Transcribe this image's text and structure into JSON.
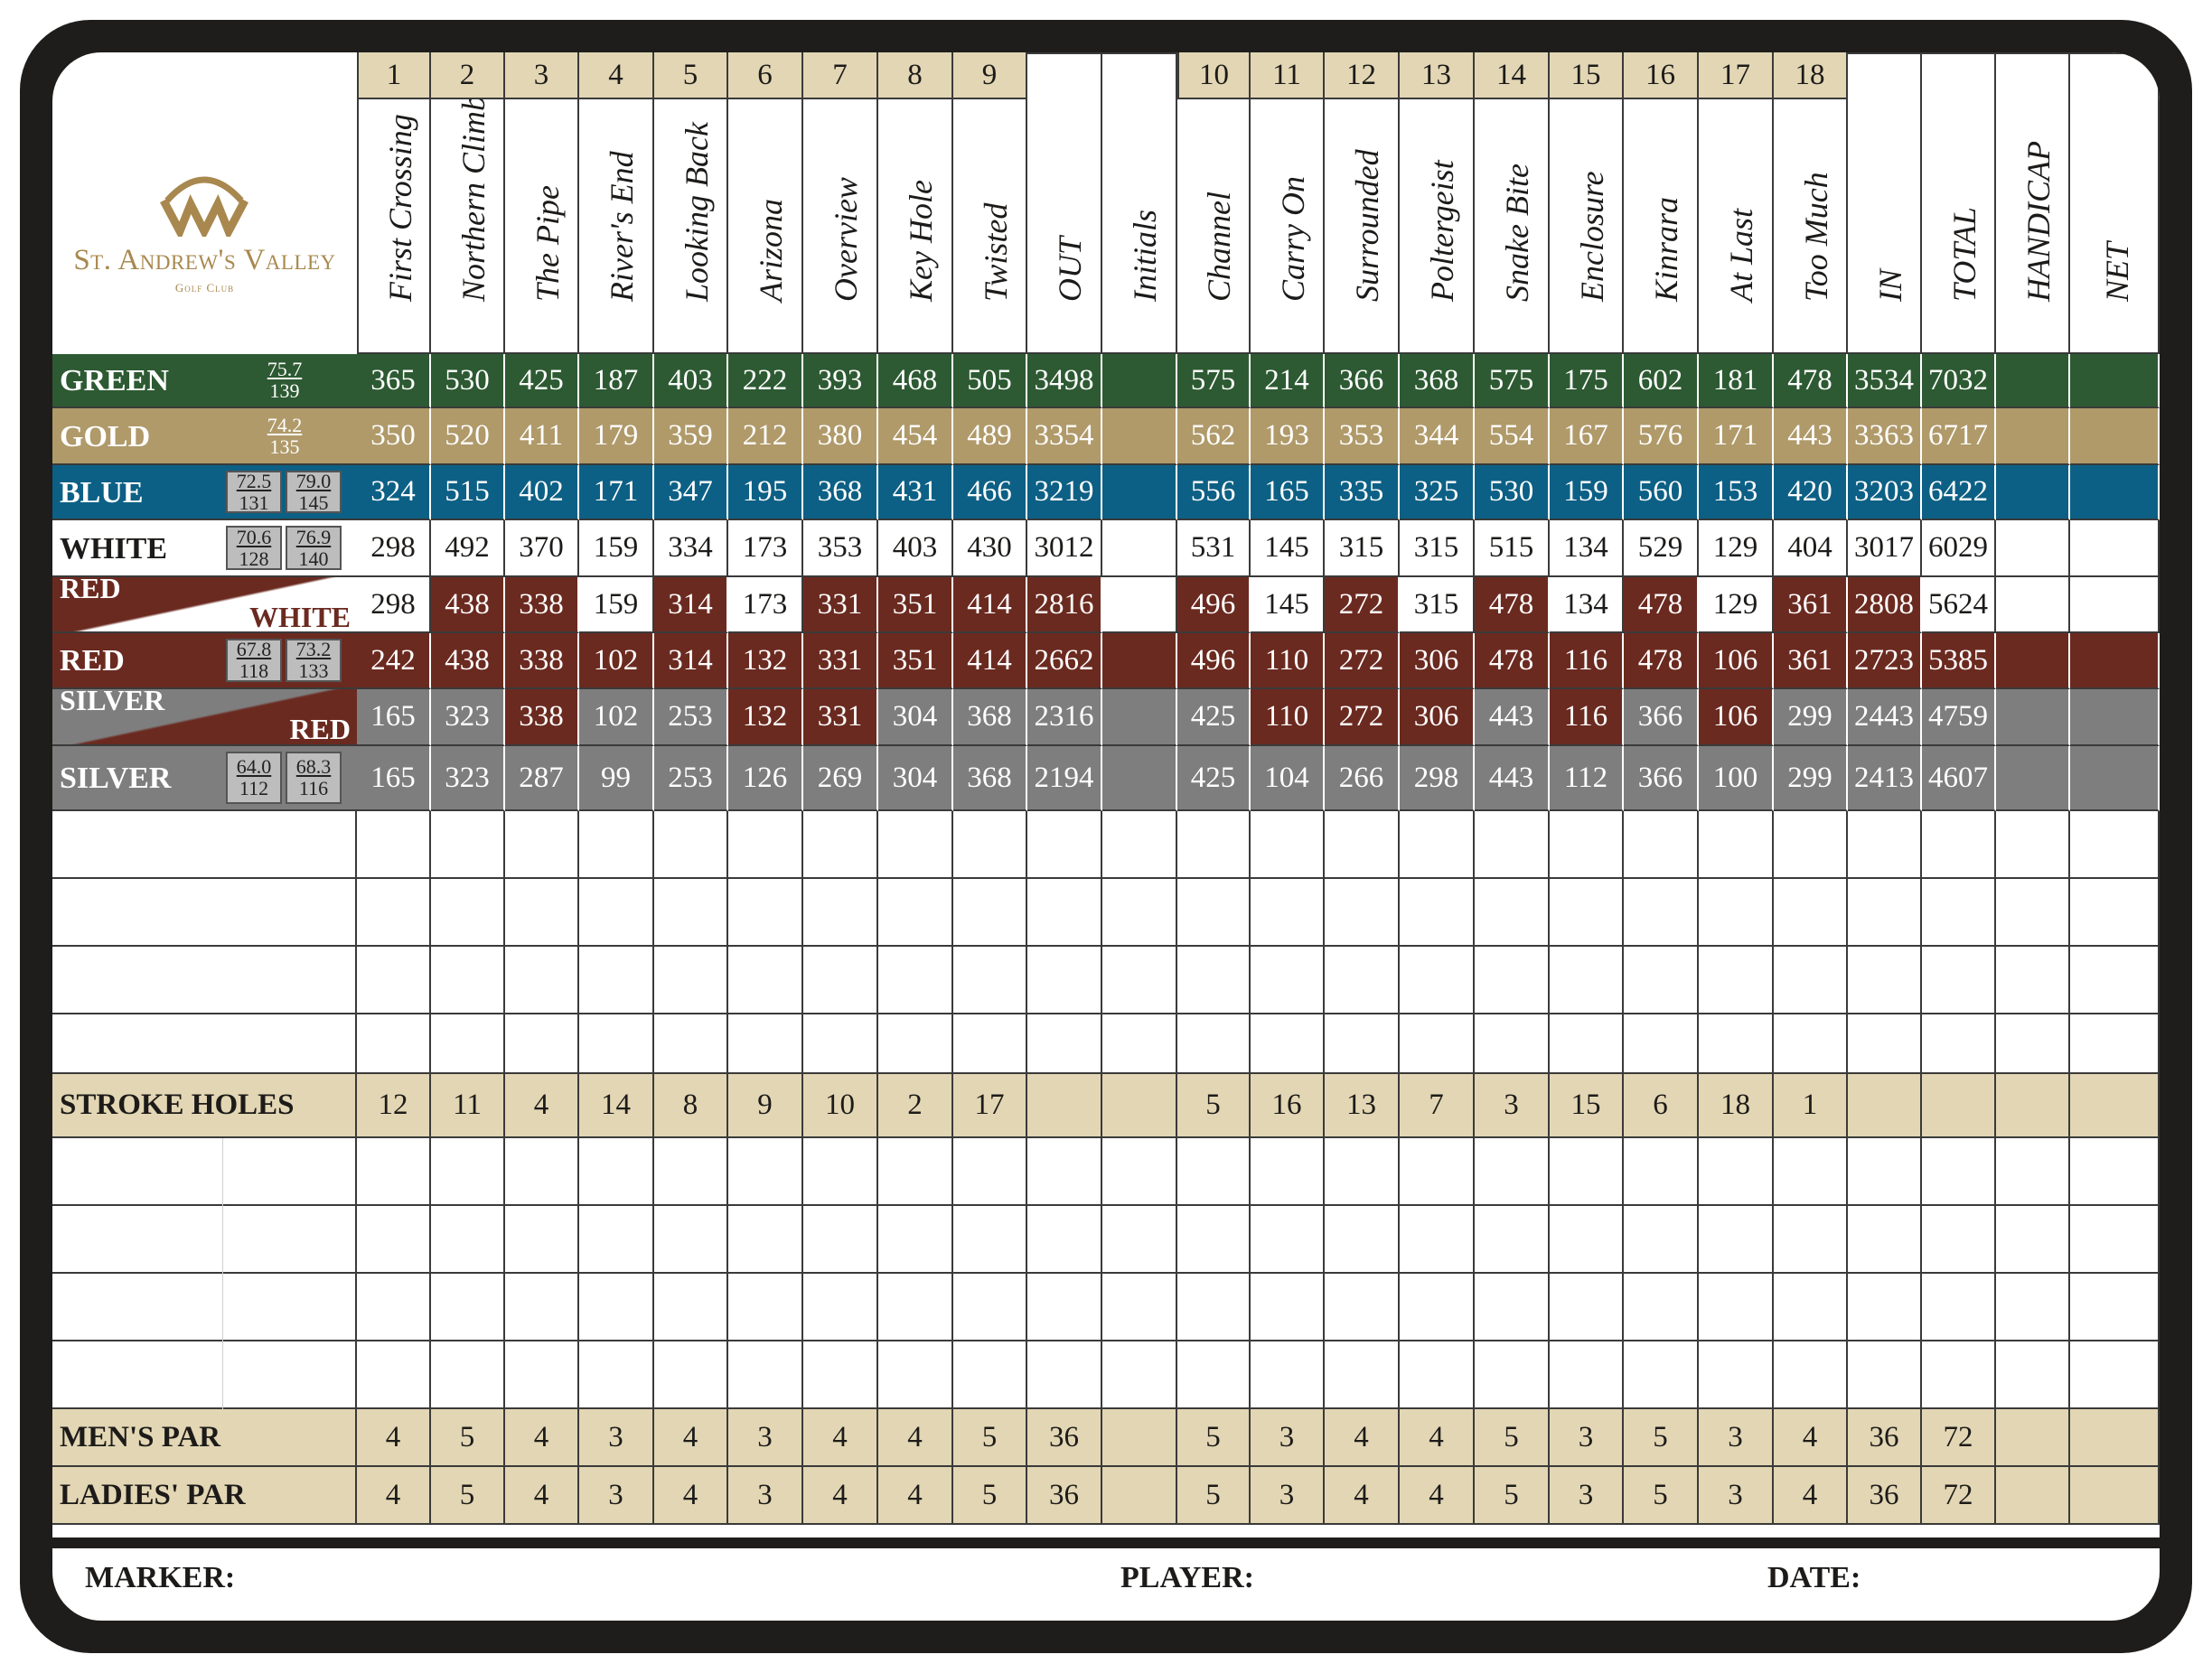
{
  "club": {
    "name": "St. Andrew's Valley",
    "subtitle": "Golf Club"
  },
  "colors": {
    "green": "#2d5a32",
    "gold": "#b09a6a",
    "blue": "#0d6085",
    "maroon": "#6b2a20",
    "silver": "#7e7e7e",
    "tan": "#e2d6b4",
    "frame": "#1e1d1b",
    "logo": "#a8884e"
  },
  "header": {
    "holes": [
      "1",
      "2",
      "3",
      "4",
      "5",
      "6",
      "7",
      "8",
      "9",
      "",
      "",
      "10",
      "11",
      "12",
      "13",
      "14",
      "15",
      "16",
      "17",
      "18",
      "",
      "",
      "",
      ""
    ],
    "names": [
      "First Crossing",
      "Northern Climb",
      "The Pipe",
      "River's End",
      "Looking Back",
      "Arizona",
      "Overview",
      "Key Hole",
      "Twisted",
      "OUT",
      "Initials",
      "Channel",
      "Carry On",
      "Surrounded",
      "Poltergeist",
      "Snake Bite",
      "Enclosure",
      "Kinrara",
      "At Last",
      "Too Much",
      "IN",
      "TOTAL",
      "HANDICAP",
      "NET"
    ]
  },
  "tees": [
    {
      "label": "GREEN",
      "rating_m": "75.7",
      "slope_m": "139",
      "values": [
        "365",
        "530",
        "425",
        "187",
        "403",
        "222",
        "393",
        "468",
        "505",
        "3498",
        "",
        "575",
        "214",
        "366",
        "368",
        "575",
        "175",
        "602",
        "181",
        "478",
        "3534",
        "7032",
        "",
        ""
      ]
    },
    {
      "label": "GOLD",
      "rating_m": "74.2",
      "slope_m": "135",
      "values": [
        "350",
        "520",
        "411",
        "179",
        "359",
        "212",
        "380",
        "454",
        "489",
        "3354",
        "",
        "562",
        "193",
        "353",
        "344",
        "554",
        "167",
        "576",
        "171",
        "443",
        "3363",
        "6717",
        "",
        ""
      ]
    },
    {
      "label": "BLUE",
      "rating_m": "72.5",
      "slope_m": "131",
      "rating_w": "79.0",
      "slope_w": "145",
      "values": [
        "324",
        "515",
        "402",
        "171",
        "347",
        "195",
        "368",
        "431",
        "466",
        "3219",
        "",
        "556",
        "165",
        "335",
        "325",
        "530",
        "159",
        "560",
        "153",
        "420",
        "3203",
        "6422",
        "",
        ""
      ]
    },
    {
      "label": "WHITE",
      "rating_m": "70.6",
      "slope_m": "128",
      "rating_w": "76.9",
      "slope_w": "140",
      "values": [
        "298",
        "492",
        "370",
        "159",
        "334",
        "173",
        "353",
        "403",
        "430",
        "3012",
        "",
        "531",
        "145",
        "315",
        "315",
        "515",
        "134",
        "529",
        "129",
        "404",
        "3017",
        "6029",
        "",
        ""
      ]
    },
    {
      "label_top": "RED",
      "label_bottom": "WHITE",
      "values": [
        "298",
        "438",
        "338",
        "159",
        "314",
        "173",
        "331",
        "351",
        "414",
        "2816",
        "",
        "496",
        "145",
        "272",
        "315",
        "478",
        "134",
        "478",
        "129",
        "361",
        "2808",
        "5624",
        "",
        ""
      ]
    },
    {
      "label": "RED",
      "rating_m": "67.8",
      "slope_m": "118",
      "rating_w": "73.2",
      "slope_w": "133",
      "values": [
        "242",
        "438",
        "338",
        "102",
        "314",
        "132",
        "331",
        "351",
        "414",
        "2662",
        "",
        "496",
        "110",
        "272",
        "306",
        "478",
        "116",
        "478",
        "106",
        "361",
        "2723",
        "5385",
        "",
        ""
      ]
    },
    {
      "label_top": "SILVER",
      "label_bottom": "RED",
      "values": [
        "165",
        "323",
        "338",
        "102",
        "253",
        "132",
        "331",
        "304",
        "368",
        "2316",
        "",
        "425",
        "110",
        "272",
        "306",
        "443",
        "116",
        "366",
        "106",
        "299",
        "2443",
        "4759",
        "",
        ""
      ]
    },
    {
      "label": "SILVER",
      "rating_m": "64.0",
      "slope_m": "112",
      "rating_w": "68.3",
      "slope_w": "116",
      "values": [
        "165",
        "323",
        "287",
        "99",
        "253",
        "126",
        "269",
        "304",
        "368",
        "2194",
        "",
        "425",
        "104",
        "266",
        "298",
        "443",
        "112",
        "366",
        "100",
        "299",
        "2413",
        "4607",
        "",
        ""
      ]
    }
  ],
  "stroke_holes": {
    "label": "STROKE HOLES",
    "values": [
      "12",
      "11",
      "4",
      "14",
      "8",
      "9",
      "10",
      "2",
      "17",
      "",
      "",
      "5",
      "16",
      "13",
      "7",
      "3",
      "15",
      "6",
      "18",
      "1",
      "",
      "",
      "",
      ""
    ]
  },
  "mens_par": {
    "label": "MEN'S PAR",
    "values": [
      "4",
      "5",
      "4",
      "3",
      "4",
      "3",
      "4",
      "4",
      "5",
      "36",
      "",
      "5",
      "3",
      "4",
      "4",
      "5",
      "3",
      "5",
      "3",
      "4",
      "36",
      "72",
      "",
      ""
    ]
  },
  "ladies_par": {
    "label": "LADIES' PAR",
    "values": [
      "4",
      "5",
      "4",
      "3",
      "4",
      "3",
      "4",
      "4",
      "5",
      "36",
      "",
      "5",
      "3",
      "4",
      "4",
      "5",
      "3",
      "5",
      "3",
      "4",
      "36",
      "72",
      "",
      ""
    ]
  },
  "footer": {
    "marker": "MARKER:",
    "player": "PLAYER:",
    "date": "DATE:"
  }
}
